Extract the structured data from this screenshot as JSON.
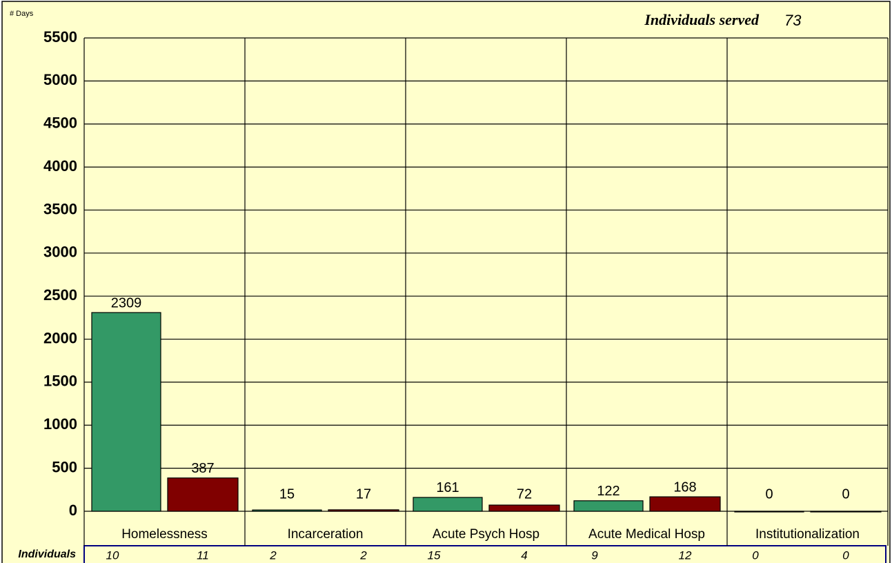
{
  "chart_data": {
    "type": "bar",
    "y_label": "# Days",
    "annotation": {
      "label": "Individuals served",
      "value": 73
    },
    "categories": [
      "Homelessness",
      "Incarceration",
      "Acute Psych Hosp",
      "Acute Medical Hosp",
      "Institutionalization"
    ],
    "series": [
      {
        "color": "#339966",
        "values": [
          2309,
          15,
          161,
          122,
          0
        ]
      },
      {
        "color": "#800000",
        "values": [
          387,
          17,
          72,
          168,
          0
        ]
      }
    ],
    "individuals": {
      "label": "Individuals",
      "series": [
        [
          10,
          2,
          15,
          9,
          0
        ],
        [
          11,
          2,
          4,
          12,
          0
        ]
      ]
    },
    "ylim": [
      0,
      5500
    ],
    "yticks": [
      0,
      500,
      1000,
      1500,
      2000,
      2500,
      3000,
      3500,
      4000,
      4500,
      5000,
      5500
    ],
    "grid": true
  }
}
